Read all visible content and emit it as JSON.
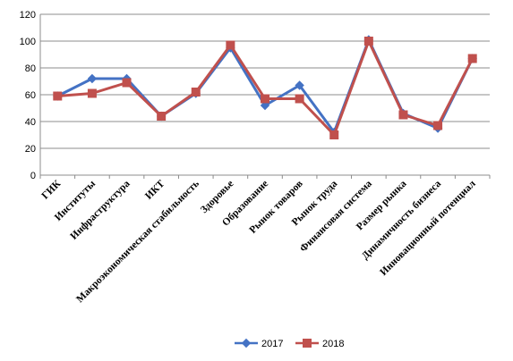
{
  "chart_data": {
    "type": "line",
    "categories": [
      "ГИК",
      "Институты",
      "Инфраструктура",
      "ИКТ",
      "Макроэкономическая стабильность",
      "Здоровье",
      "Образование",
      "Рынок товаров",
      "Рынок труда",
      "Финансовая система",
      "Размер рынка",
      "Динамичность бизнеса",
      "Инновационный потенциал"
    ],
    "series": [
      {
        "name": "2017",
        "color": "#4472c4",
        "marker": "diamond",
        "values": [
          59,
          72,
          72,
          44,
          61,
          95,
          52,
          67,
          32,
          101,
          46,
          35,
          87
        ]
      },
      {
        "name": "2018",
        "color": "#c0504d",
        "marker": "square",
        "values": [
          59,
          61,
          69,
          44,
          62,
          97,
          57,
          57,
          30,
          100,
          45,
          37,
          87
        ]
      }
    ],
    "yticks": [
      "0",
      "20",
      "40",
      "60",
      "80",
      "100",
      "120"
    ],
    "ylim": [
      0,
      120
    ],
    "grid": "horizontal",
    "legend_position": "bottom"
  }
}
